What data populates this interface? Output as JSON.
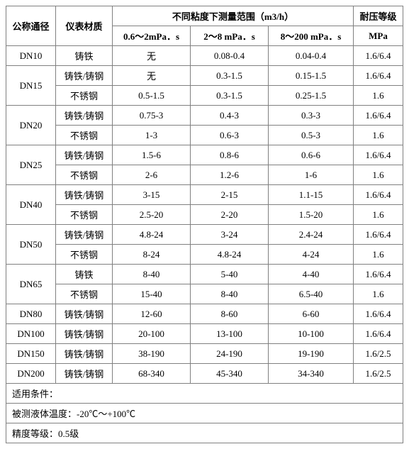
{
  "header": {
    "nominal_diameter": "公称通径",
    "material": "仪表材质",
    "range_group": "不同粘度下测量范围（m3/h）",
    "pressure_rating": "耐压等级",
    "col_v1": "0.6～2mPa．s",
    "col_v2": "2～8 mPa．s",
    "col_v3": "8～200 mPa．s",
    "col_unit": "MPa"
  },
  "rows": [
    {
      "diameter": "DN10",
      "rowspan": 1,
      "material": "铸铁",
      "v1": "无",
      "v2": "0.08-0.4",
      "v3": "0.04-0.4",
      "p": "1.6/6.4"
    },
    {
      "diameter": "DN15",
      "rowspan": 2,
      "material": "铸铁/铸钢",
      "v1": "无",
      "v2": "0.3-1.5",
      "v3": "0.15-1.5",
      "p": "1.6/6.4"
    },
    {
      "material": "不锈钢",
      "v1": "0.5-1.5",
      "v2": "0.3-1.5",
      "v3": "0.25-1.5",
      "p": "1.6"
    },
    {
      "diameter": "DN20",
      "rowspan": 2,
      "material": "铸铁/铸钢",
      "v1": "0.75-3",
      "v2": "0.4-3",
      "v3": "0.3-3",
      "p": "1.6/6.4"
    },
    {
      "material": "不锈钢",
      "v1": "1-3",
      "v2": "0.6-3",
      "v3": "0.5-3",
      "p": "1.6"
    },
    {
      "diameter": "DN25",
      "rowspan": 2,
      "material": "铸铁/铸钢",
      "v1": "1.5-6",
      "v2": "0.8-6",
      "v3": "0.6-6",
      "p": "1.6/6.4"
    },
    {
      "material": "不锈钢",
      "v1": "2-6",
      "v2": "1.2-6",
      "v3": "1-6",
      "p": "1.6"
    },
    {
      "diameter": "DN40",
      "rowspan": 2,
      "material": "铸铁/铸钢",
      "v1": "3-15",
      "v2": "2-15",
      "v3": "1.1-15",
      "p": "1.6/6.4"
    },
    {
      "material": "不锈钢",
      "v1": "2.5-20",
      "v2": "2-20",
      "v3": "1.5-20",
      "p": "1.6"
    },
    {
      "diameter": "DN50",
      "rowspan": 2,
      "material": "铸铁/铸钢",
      "v1": "4.8-24",
      "v2": "3-24",
      "v3": "2.4-24",
      "p": "1.6/6.4"
    },
    {
      "material": "不锈钢",
      "v1": "8-24",
      "v2": "4.8-24",
      "v3": "4-24",
      "p": "1.6"
    },
    {
      "diameter": "DN65",
      "rowspan": 2,
      "material": "铸铁",
      "v1": "8-40",
      "v2": "5-40",
      "v3": "4-40",
      "p": "1.6/6.4"
    },
    {
      "material": "不锈钢",
      "v1": "15-40",
      "v2": "8-40",
      "v3": "6.5-40",
      "p": "1.6"
    },
    {
      "diameter": "DN80",
      "rowspan": 1,
      "material": "铸铁/铸钢",
      "v1": "12-60",
      "v2": "8-60",
      "v3": "6-60",
      "p": "1.6/6.4"
    },
    {
      "diameter": "DN100",
      "rowspan": 1,
      "material": "铸铁/铸钢",
      "v1": "20-100",
      "v2": "13-100",
      "v3": "10-100",
      "p": "1.6/6.4"
    },
    {
      "diameter": "DN150",
      "rowspan": 1,
      "material": "铸铁/铸钢",
      "v1": "38-190",
      "v2": "24-190",
      "v3": "19-190",
      "p": "1.6/2.5"
    },
    {
      "diameter": "DN200",
      "rowspan": 1,
      "material": "铸铁/铸钢",
      "v1": "68-340",
      "v2": "45-340",
      "v3": "34-340",
      "p": "1.6/2.5"
    }
  ],
  "footer": {
    "line1": "适用条件：",
    "line2": "被测液体温度：-20℃～+100℃",
    "line3": "精度等级：0.5级"
  }
}
